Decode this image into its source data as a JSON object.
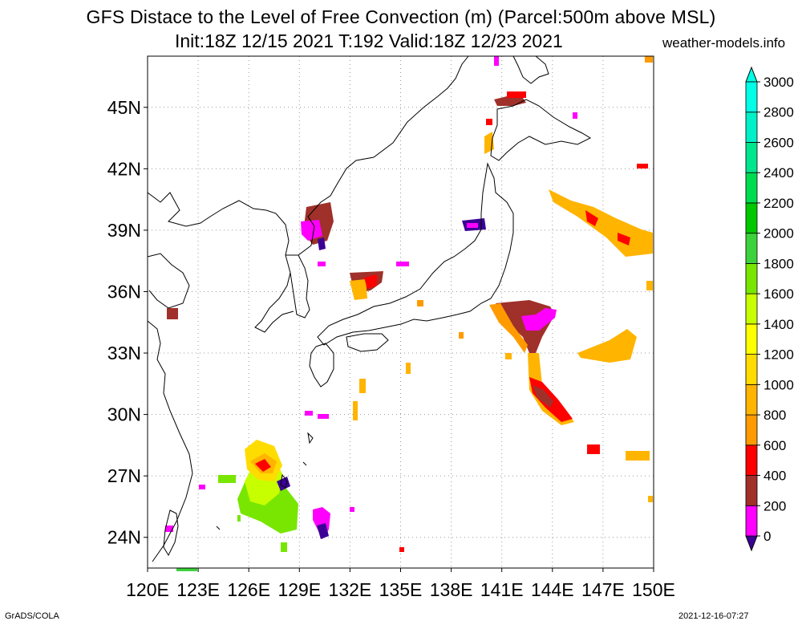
{
  "header": {
    "title": "GFS Distace to the Level of Free Convection (m) (Parcel:500m above MSL)",
    "subtitle": "Init:18Z 12/15 2021 T:192 Valid:18Z 12/23 2021",
    "site": "weather-models.info"
  },
  "footer": {
    "software": "GrADS/COLA",
    "timestamp": "2021-12-16-07:27"
  },
  "map": {
    "lon_range": [
      120,
      150
    ],
    "lat_range": [
      22.5,
      47.5
    ],
    "lon_ticks": [
      "120E",
      "123E",
      "126E",
      "129E",
      "132E",
      "135E",
      "138E",
      "141E",
      "144E",
      "147E",
      "150E"
    ],
    "lat_ticks": [
      "24N",
      "27N",
      "30N",
      "33N",
      "36N",
      "39N",
      "42N",
      "45N"
    ],
    "lat_tick_values": [
      24,
      27,
      30,
      33,
      36,
      39,
      42,
      45
    ],
    "grid": "dotted",
    "field_colors_by_level": {
      "0": "#3c0096",
      "200": "#ff00ff",
      "400": "#a0302a",
      "600": "#ff0000",
      "800": "#ff9b00",
      "1000": "#ffb400",
      "1200": "#ffdc00",
      "1400": "#ffff00",
      "1600": "#c8ff00",
      "1800": "#78e600",
      "2000": "#3cd23c"
    }
  },
  "colorbar": {
    "labels": [
      "0",
      "200",
      "400",
      "600",
      "800",
      "1000",
      "1200",
      "1400",
      "1600",
      "1800",
      "2000",
      "2200",
      "2400",
      "2600",
      "2800",
      "3000"
    ],
    "colors": [
      "#3c0096",
      "#ff00ff",
      "#a0302a",
      "#ff0000",
      "#ff9b00",
      "#ffb400",
      "#ffdc00",
      "#ffff00",
      "#c8ff00",
      "#78e600",
      "#3cd23c",
      "#00c800",
      "#00dc50",
      "#00e68c",
      "#00f0c8",
      "#00ffe6"
    ]
  }
}
